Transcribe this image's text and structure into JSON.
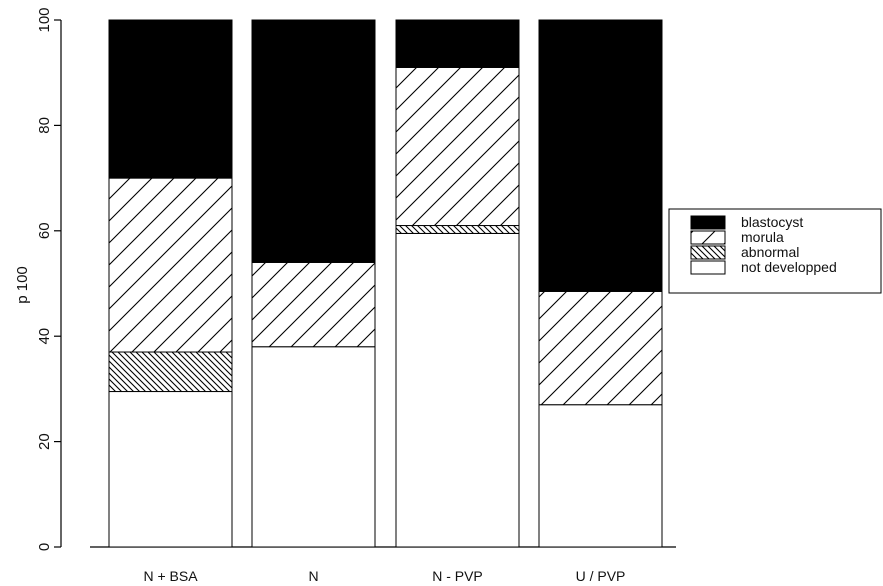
{
  "chart_data": {
    "type": "bar",
    "stacked": true,
    "orientation": "vertical",
    "title": "",
    "xlabel": "",
    "ylabel": "p 100",
    "ylim": [
      0,
      100
    ],
    "yticks": [
      0,
      20,
      40,
      60,
      80,
      100
    ],
    "grid": false,
    "legend_position": "right",
    "categories": [
      "N + BSA",
      "N",
      "N - PVP",
      "U / PVP"
    ],
    "series": [
      {
        "name": "not developped",
        "pattern": "solid-white",
        "values": [
          29.5,
          38,
          59.5,
          27
        ]
      },
      {
        "name": "abnormal",
        "pattern": "dense-hatch",
        "values": [
          7.5,
          0,
          1.5,
          0
        ]
      },
      {
        "name": "morula",
        "pattern": "diagonal-hatch",
        "values": [
          33,
          16,
          30,
          21.5
        ]
      },
      {
        "name": "blastocyst",
        "pattern": "solid-black",
        "values": [
          30,
          46,
          9,
          51.5
        ]
      }
    ],
    "legend_order": [
      "blastocyst",
      "morula",
      "abnormal",
      "not developped"
    ],
    "colors": {
      "ink": "#000000",
      "paper": "#ffffff"
    }
  }
}
